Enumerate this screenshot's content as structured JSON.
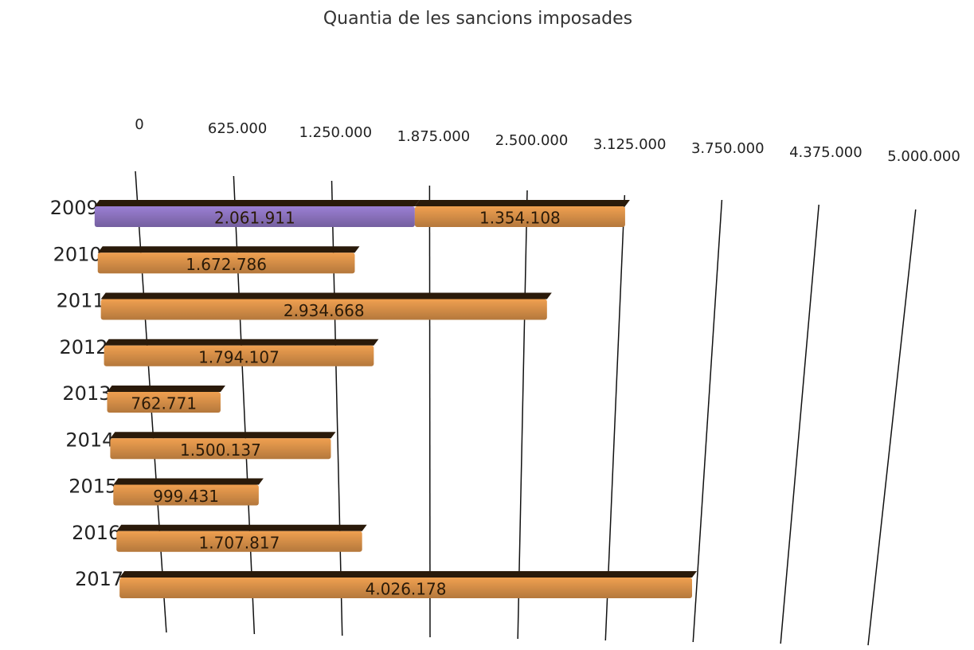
{
  "chart_data": {
    "type": "bar",
    "orientation": "horizontal",
    "stacked": true,
    "title": "Quantia de les sancions imposades",
    "categories": [
      "2009",
      "2010",
      "2011",
      "2012",
      "2013",
      "2014",
      "2015",
      "2016",
      "2017"
    ],
    "series": [
      {
        "color": "#9b7fd4",
        "values": [
          2061911,
          null,
          null,
          null,
          null,
          null,
          null,
          null,
          null
        ],
        "value_labels": [
          "2.061.911",
          null,
          null,
          null,
          null,
          null,
          null,
          null,
          null
        ]
      },
      {
        "color": "#f0a050",
        "values": [
          1354108,
          1672786,
          2934668,
          1794107,
          762771,
          1500137,
          999431,
          1707817,
          4026178
        ],
        "value_labels": [
          "1.354.108",
          "1.672.786",
          "2.934.668",
          "1.794.107",
          "762.771",
          "1.500.137",
          "999.431",
          "1.707.817",
          "4.026.178"
        ]
      }
    ],
    "xlim": [
      0,
      5000000
    ],
    "xticks": [
      0,
      {
        "value": 625000,
        "label": "625.000"
      },
      {
        "value": 1250000,
        "label": "1.250.000"
      },
      {
        "value": 1875000,
        "label": "1.875.000"
      },
      {
        "value": 2500000,
        "label": "2.500.000"
      },
      {
        "value": 3125000,
        "label": "3.125.000"
      },
      {
        "value": 3750000,
        "label": "3.750.000"
      },
      {
        "value": 4375000,
        "label": "4.375.000"
      },
      {
        "value": 5000000,
        "label": "5.000.000"
      }
    ],
    "grid": true
  }
}
